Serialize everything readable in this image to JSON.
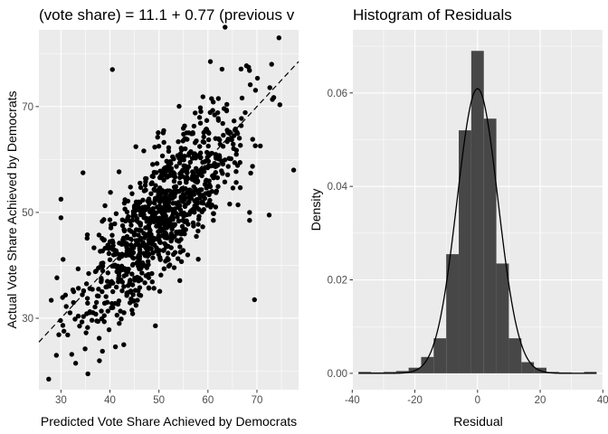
{
  "chart_data": [
    {
      "type": "scatter",
      "title": "(vote share) = 11.1 + 0.77 (previous v",
      "xlabel": "Predicted Vote Share Achieved by Democrats",
      "ylabel": "Actual Vote Share Achieved by Democrats",
      "xlim": [
        25.5,
        78.5
      ],
      "ylim": [
        16.5,
        84.5
      ],
      "x_ticks": [
        30,
        40,
        50,
        60,
        70
      ],
      "y_ticks": [
        30,
        50,
        70
      ],
      "grid": true,
      "reference_line": {
        "style": "dashed",
        "intercept": 0,
        "slope": 1
      },
      "cloud_summary": {
        "n_points": 1000,
        "center": [
          51,
          50
        ],
        "slope": 1.0,
        "x_sd": 8.5,
        "residual_sd": 6.0
      },
      "outliers": [
        [
          40.5,
          77
        ],
        [
          63.5,
          85
        ],
        [
          74.5,
          83
        ],
        [
          73,
          78
        ],
        [
          77.5,
          58
        ],
        [
          69.5,
          33.5
        ],
        [
          68.5,
          50
        ],
        [
          68.5,
          48.5
        ],
        [
          72.5,
          49.5
        ],
        [
          27.5,
          18.5
        ],
        [
          35.5,
          19.5
        ],
        [
          33,
          21.5
        ],
        [
          34.5,
          57.5
        ],
        [
          30,
          49
        ],
        [
          30,
          52.5
        ],
        [
          60.5,
          78.5
        ]
      ]
    },
    {
      "type": "histogram",
      "title": "Histogram of Residuals",
      "xlabel": "Residual",
      "ylabel": "Density",
      "xlim": [
        -39.8,
        40.2
      ],
      "ylim": [
        -0.0035,
        0.0735
      ],
      "x_ticks": [
        -40,
        -20,
        0,
        20,
        40
      ],
      "y_ticks": [
        0.0,
        0.02,
        0.04,
        0.06
      ],
      "y_tick_labels": [
        "0.00",
        "0.02",
        "0.04",
        "0.06"
      ],
      "grid": true,
      "bin_width": 4,
      "bins": [
        {
          "x0": -38,
          "x1": -34,
          "density": 0.0003
        },
        {
          "x0": -34,
          "x1": -30,
          "density": 0.0002
        },
        {
          "x0": -30,
          "x1": -26,
          "density": 0.0003
        },
        {
          "x0": -26,
          "x1": -22,
          "density": 0.0005
        },
        {
          "x0": -22,
          "x1": -18,
          "density": 0.0012
        },
        {
          "x0": -18,
          "x1": -14,
          "density": 0.0035
        },
        {
          "x0": -14,
          "x1": -10,
          "density": 0.0075
        },
        {
          "x0": -10,
          "x1": -6,
          "density": 0.0255
        },
        {
          "x0": -6,
          "x1": -2,
          "density": 0.052
        },
        {
          "x0": -2,
          "x1": 2,
          "density": 0.069
        },
        {
          "x0": 2,
          "x1": 6,
          "density": 0.0545
        },
        {
          "x0": 6,
          "x1": 10,
          "density": 0.0235
        },
        {
          "x0": 10,
          "x1": 14,
          "density": 0.0075
        },
        {
          "x0": 14,
          "x1": 18,
          "density": 0.0024
        },
        {
          "x0": 18,
          "x1": 22,
          "density": 0.0012
        },
        {
          "x0": 22,
          "x1": 26,
          "density": 0.0003
        },
        {
          "x0": 26,
          "x1": 30,
          "density": 0.0002
        },
        {
          "x0": 30,
          "x1": 34,
          "density": 0.0001
        },
        {
          "x0": 34,
          "x1": 38,
          "density": 0.0003
        }
      ],
      "density_curve": {
        "type": "normal",
        "mean": 0,
        "sd": 6.55
      }
    }
  ]
}
